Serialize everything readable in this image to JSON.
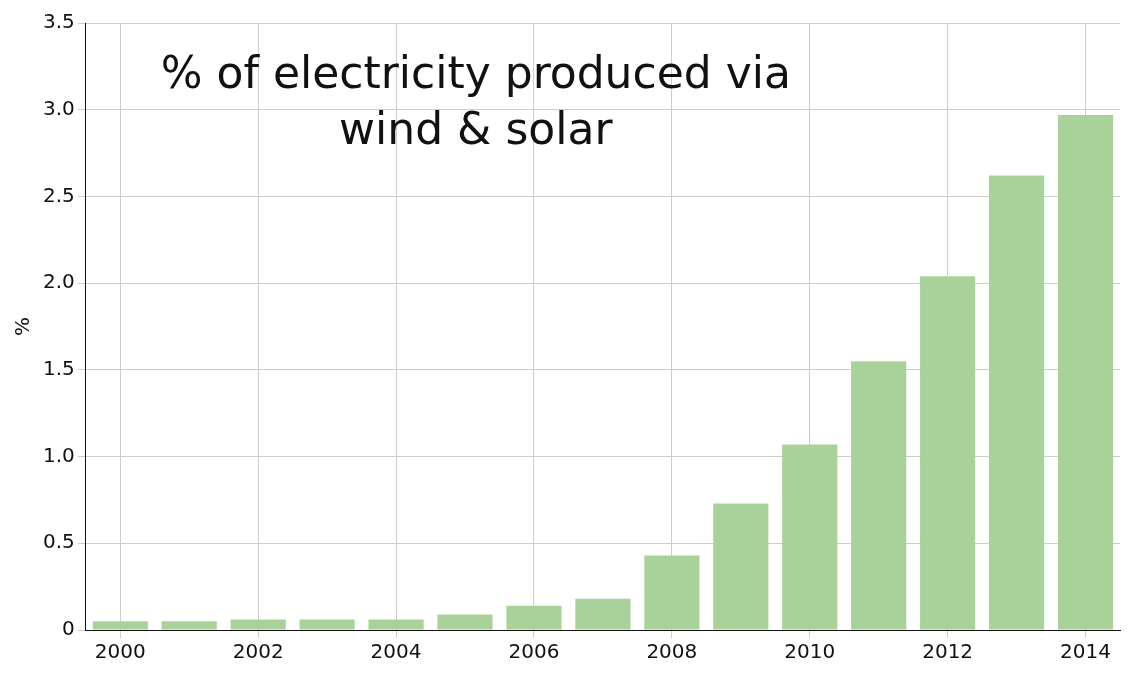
{
  "chart_data": {
    "type": "bar",
    "title": "% of electricity produced via wind & solar",
    "ylabel": "%",
    "x": [
      2000,
      2001,
      2002,
      2003,
      2004,
      2005,
      2006,
      2007,
      2008,
      2009,
      2010,
      2011,
      2012,
      2013,
      2014
    ],
    "values": [
      0.05,
      0.05,
      0.06,
      0.06,
      0.06,
      0.09,
      0.14,
      0.18,
      0.43,
      0.73,
      1.07,
      1.55,
      2.04,
      2.62,
      2.97
    ],
    "color": "#a8d29a",
    "xlim": [
      1999.5,
      2014.5
    ],
    "xticks": [
      2000,
      2002,
      2004,
      2006,
      2008,
      2010,
      2012,
      2014
    ],
    "ylim": [
      0,
      3.5
    ],
    "yticks": [
      0,
      0.5,
      {
        "value": 1,
        "label": "1.0"
      },
      1.5,
      {
        "value": 2,
        "label": "2.0"
      },
      2.5,
      {
        "value": 3,
        "label": "3.0"
      },
      3.5
    ],
    "grid": true,
    "legend": false
  }
}
